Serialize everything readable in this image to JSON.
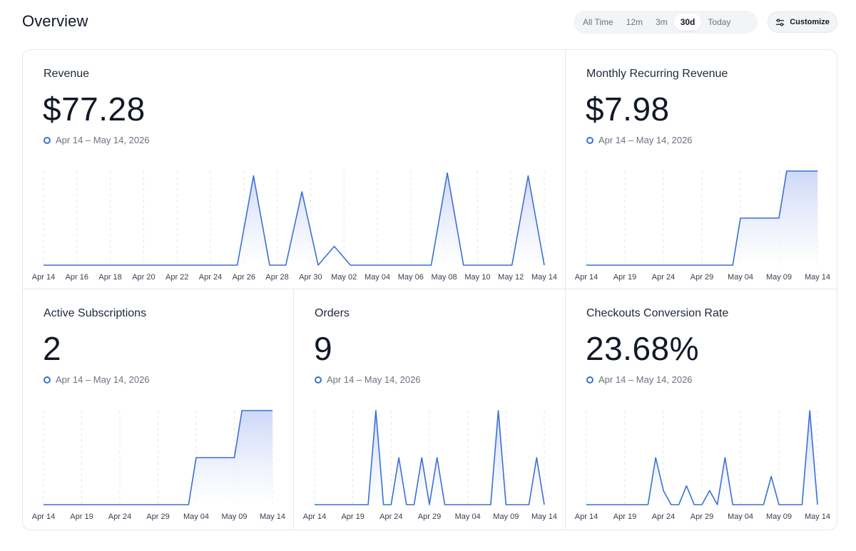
{
  "header": {
    "title": "Overview",
    "ranges": [
      {
        "label": "All Time",
        "active": false
      },
      {
        "label": "12m",
        "active": false
      },
      {
        "label": "3m",
        "active": false
      },
      {
        "label": "30d",
        "active": true
      },
      {
        "label": "Today",
        "active": false
      }
    ],
    "customize_label": "Customize",
    "customize_icon": "sliders-icon"
  },
  "colors": {
    "accent": "#3b6fd8",
    "fill_top": "#c7d4f7",
    "fill_bottom": "#ffffff"
  },
  "cards": [
    {
      "id": "revenue",
      "title": "Revenue",
      "value": "$77.28",
      "range": "Apr 14 – May 14, 2026",
      "chart_data": {
        "type": "area",
        "x_labels": [
          "Apr 14",
          "Apr 16",
          "Apr 18",
          "Apr 20",
          "Apr 22",
          "Apr 24",
          "Apr 26",
          "Apr 28",
          "Apr 30",
          "May 02",
          "May 04",
          "May 06",
          "May 08",
          "May 10",
          "May 12",
          "May 14"
        ],
        "values": [
          0,
          0,
          0,
          0,
          0,
          0,
          0,
          0,
          0,
          0,
          0,
          0,
          0,
          0.95,
          0,
          0,
          0.78,
          0,
          0.2,
          0,
          0,
          0,
          0,
          0,
          0,
          0.98,
          0,
          0,
          0,
          0,
          0.95,
          0
        ],
        "ylim": [
          0,
          1
        ]
      }
    },
    {
      "id": "mrr",
      "title": "Monthly Recurring Revenue",
      "value": "$7.98",
      "range": "Apr 14 – May 14, 2026",
      "chart_data": {
        "type": "area",
        "x_labels": [
          "Apr 14",
          "Apr 19",
          "Apr 24",
          "Apr 29",
          "May 04",
          "May 09",
          "May 14"
        ],
        "values": [
          0,
          0,
          0,
          0,
          0,
          0,
          0,
          0,
          0,
          0,
          0,
          0,
          0,
          0,
          0,
          0,
          0,
          0,
          0,
          0,
          0.5,
          0.5,
          0.5,
          0.5,
          0.5,
          0.5,
          1,
          1,
          1,
          1,
          1
        ],
        "ylim": [
          0,
          1
        ]
      }
    },
    {
      "id": "active-subscriptions",
      "title": "Active Subscriptions",
      "value": "2",
      "range": "Apr 14 – May 14, 2026",
      "chart_data": {
        "type": "area",
        "x_labels": [
          "Apr 14",
          "Apr 19",
          "Apr 24",
          "Apr 29",
          "May 04",
          "May 09",
          "May 14"
        ],
        "values": [
          0,
          0,
          0,
          0,
          0,
          0,
          0,
          0,
          0,
          0,
          0,
          0,
          0,
          0,
          0,
          0,
          0,
          0,
          0,
          0,
          0.5,
          0.5,
          0.5,
          0.5,
          0.5,
          0.5,
          1,
          1,
          1,
          1,
          1
        ],
        "ylim": [
          0,
          2
        ]
      }
    },
    {
      "id": "orders",
      "title": "Orders",
      "value": "9",
      "range": "Apr 14 – May 14, 2026",
      "chart_data": {
        "type": "area",
        "x_labels": [
          "Apr 14",
          "Apr 19",
          "Apr 24",
          "Apr 29",
          "May 04",
          "May 09",
          "May 14"
        ],
        "values": [
          0,
          0,
          0,
          0,
          0,
          0,
          0,
          0,
          1,
          0,
          0,
          0.5,
          0,
          0,
          0.5,
          0,
          0.5,
          0,
          0,
          0,
          0,
          0,
          0,
          0,
          1,
          0,
          0,
          0,
          0,
          0.5,
          0
        ],
        "ylim": [
          0,
          2
        ]
      }
    },
    {
      "id": "checkout-conversion",
      "title": "Checkouts Conversion Rate",
      "value": "23.68%",
      "range": "Apr 14 – May 14, 2026",
      "chart_data": {
        "type": "area",
        "x_labels": [
          "Apr 14",
          "Apr 19",
          "Apr 24",
          "Apr 29",
          "May 04",
          "May 09",
          "May 14"
        ],
        "values": [
          0,
          0,
          0,
          0,
          0,
          0,
          0,
          0,
          0,
          0.5,
          0.15,
          0,
          0,
          0.2,
          0,
          0,
          0.15,
          0,
          0.5,
          0,
          0,
          0,
          0,
          0,
          0.3,
          0,
          0,
          0,
          0,
          1,
          0
        ],
        "ylim": [
          0,
          1
        ]
      }
    }
  ]
}
